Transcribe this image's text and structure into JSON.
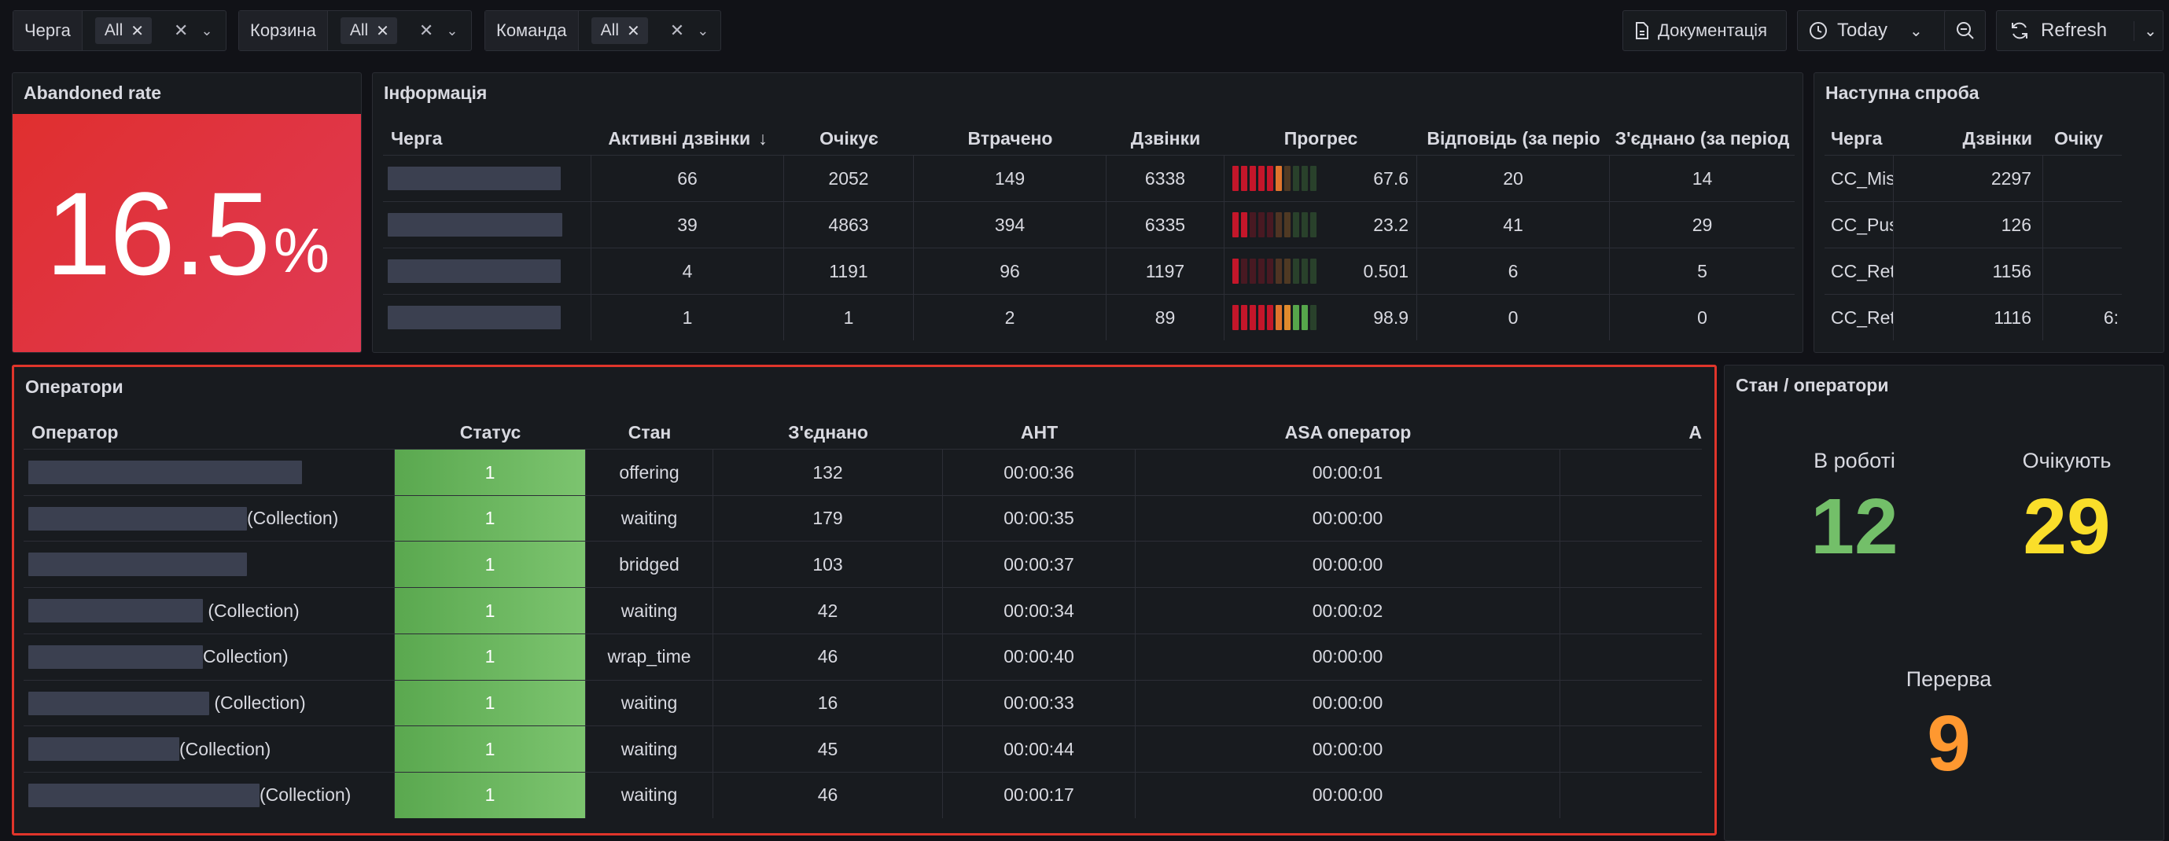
{
  "filters": [
    {
      "label": "Черга",
      "value": "All"
    },
    {
      "label": "Корзина",
      "value": "All"
    },
    {
      "label": "Команда",
      "value": "All"
    }
  ],
  "toolbar": {
    "docs_label": "Документація",
    "time_label": "Today",
    "refresh_label": "Refresh"
  },
  "abandoned": {
    "title": "Abandoned rate",
    "value": "16.5",
    "unit": "%"
  },
  "info": {
    "title": "Інформація",
    "columns": [
      "Черга",
      "Активні дзвінки",
      "Очікує",
      "Втрачено",
      "Дзвінки",
      "Прогрес",
      "Відповідь (за періо",
      "З'єднано (за період"
    ],
    "rows": [
      {
        "active": "66",
        "waiting": "2052",
        "lost": "149",
        "calls": "6338",
        "progress": "67.6",
        "progress_pct": 67.6,
        "answered": "20",
        "connected": "14"
      },
      {
        "active": "39",
        "waiting": "4863",
        "lost": "394",
        "calls": "6335",
        "progress": "23.2",
        "progress_pct": 23.2,
        "answered": "41",
        "connected": "29"
      },
      {
        "active": "4",
        "waiting": "1191",
        "lost": "96",
        "calls": "1197",
        "progress": "0.501",
        "progress_pct": 0.501,
        "answered": "6",
        "connected": "5"
      },
      {
        "active": "1",
        "waiting": "1",
        "lost": "2",
        "calls": "89",
        "progress": "98.9",
        "progress_pct": 98.9,
        "answered": "0",
        "connected": "0"
      }
    ]
  },
  "next_try": {
    "title": "Наступна спроба",
    "columns": [
      "Черга",
      "Дзвінки",
      "Очіку"
    ],
    "rows": [
      {
        "queue": "CC_Mis",
        "calls": "2297",
        "waiting": ""
      },
      {
        "queue": "CC_Pus",
        "calls": "126",
        "waiting": ""
      },
      {
        "queue": "CC_Ret",
        "calls": "1156",
        "waiting": ""
      },
      {
        "queue": "CC_Ret",
        "calls": "1116",
        "waiting": "6:"
      }
    ]
  },
  "operators": {
    "title": "Оператори",
    "columns": [
      "Оператор",
      "Статус",
      "Стан",
      "З'єднано",
      "AHT",
      "ASA оператор",
      "A"
    ],
    "rows": [
      {
        "suffix": "",
        "status": "1",
        "state": "offering",
        "connected": "132",
        "aht": "00:00:36",
        "asa": "00:00:01"
      },
      {
        "suffix": "(Collection)",
        "status": "1",
        "state": "waiting",
        "connected": "179",
        "aht": "00:00:35",
        "asa": "00:00:00"
      },
      {
        "suffix": "",
        "status": "1",
        "state": "bridged",
        "connected": "103",
        "aht": "00:00:37",
        "asa": "00:00:00"
      },
      {
        "suffix": " (Collection)",
        "status": "1",
        "state": "waiting",
        "connected": "42",
        "aht": "00:00:34",
        "asa": "00:00:02"
      },
      {
        "suffix": "Collection)",
        "status": "1",
        "state": "wrap_time",
        "connected": "46",
        "aht": "00:00:40",
        "asa": "00:00:00"
      },
      {
        "suffix": " (Collection)",
        "status": "1",
        "state": "waiting",
        "connected": "16",
        "aht": "00:00:33",
        "asa": "00:00:00"
      },
      {
        "suffix": "(Collection)",
        "status": "1",
        "state": "waiting",
        "connected": "45",
        "aht": "00:00:44",
        "asa": "00:00:00"
      },
      {
        "suffix": "(Collection)",
        "status": "1",
        "state": "waiting",
        "connected": "46",
        "aht": "00:00:17",
        "asa": "00:00:00"
      }
    ]
  },
  "states": {
    "title": "Стан / оператори",
    "in_work_label": "В роботі",
    "in_work_value": "12",
    "waiting_label": "Очікують",
    "waiting_value": "29",
    "break_label": "Перерва",
    "break_value": "9"
  },
  "colors": {
    "green": "#73bf69",
    "yellow": "#fade2a",
    "orange": "#ff9830",
    "red": "#e02f44",
    "status_green": "#62ab57",
    "highlight": "#e0352b"
  }
}
